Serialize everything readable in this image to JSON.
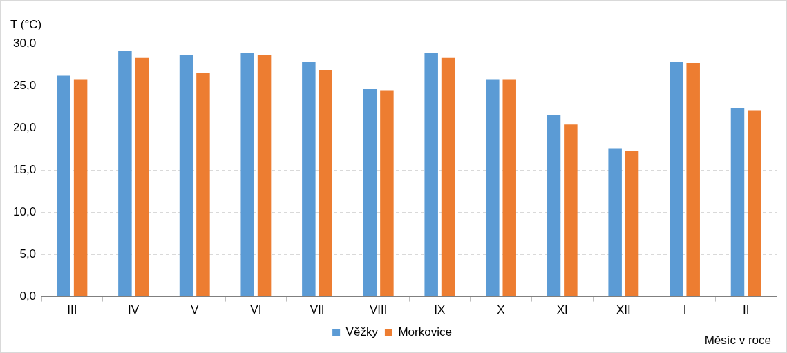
{
  "chart_data": {
    "type": "bar",
    "ylabel": "T (°C)",
    "xlabel": "Měsíc v roce",
    "categories": [
      "III",
      "IV",
      "V",
      "VI",
      "VII",
      "VIII",
      "IX",
      "X",
      "XI",
      "XII",
      "I",
      "II"
    ],
    "series": [
      {
        "name": "Věžky",
        "color": "#5b9bd5",
        "values": [
          26.2,
          29.1,
          28.7,
          28.9,
          27.8,
          24.6,
          28.9,
          25.7,
          21.5,
          17.6,
          27.8,
          22.3
        ]
      },
      {
        "name": "Morkovice",
        "color": "#ed7d31",
        "values": [
          25.7,
          28.3,
          26.5,
          28.7,
          26.9,
          24.4,
          28.3,
          25.7,
          20.4,
          17.3,
          27.7,
          22.1
        ]
      }
    ],
    "ylim": [
      0,
      30
    ],
    "yticks": [
      {
        "value": 0,
        "label": "0,0"
      },
      {
        "value": 5,
        "label": "5,0"
      },
      {
        "value": 10,
        "label": "10,0"
      },
      {
        "value": 15,
        "label": "15,0"
      },
      {
        "value": 20,
        "label": "20,0"
      },
      {
        "value": 25,
        "label": "25,0"
      },
      {
        "value": 30,
        "label": "30,0"
      }
    ],
    "grid": "y",
    "legend": "bottom"
  }
}
